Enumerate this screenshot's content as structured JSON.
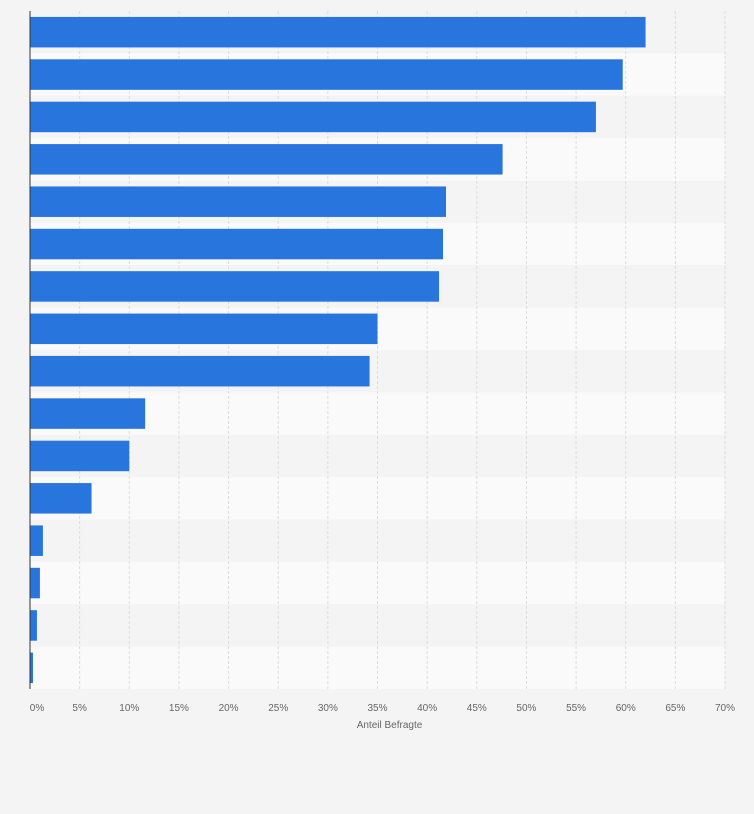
{
  "chart_data": {
    "type": "bar",
    "orientation": "horizontal",
    "xlabel": "Anteil Befragte",
    "ylabel": "",
    "xlim": [
      0,
      70
    ],
    "x_ticks": [
      0,
      5,
      10,
      15,
      20,
      25,
      30,
      35,
      40,
      45,
      50,
      55,
      60,
      65,
      70
    ],
    "tick_suffix": "%",
    "grid": true,
    "categories": [
      "",
      "",
      "",
      "",
      "",
      "",
      "",
      "",
      "",
      "",
      "",
      "",
      "",
      "",
      "",
      ""
    ],
    "values": [
      62,
      59.7,
      57,
      47.6,
      41.9,
      41.6,
      41.2,
      35,
      34.2,
      11.6,
      10,
      6.2,
      1.3,
      1,
      0.7,
      0.3
    ],
    "bar_color": "#2876dd",
    "stripe_colors": [
      "#f4f4f4",
      "#fafafa"
    ],
    "background": "#f4f4f4",
    "gridline_color": "#dddddd",
    "axis_color": "#333333",
    "tick_label_color": "#666666"
  }
}
